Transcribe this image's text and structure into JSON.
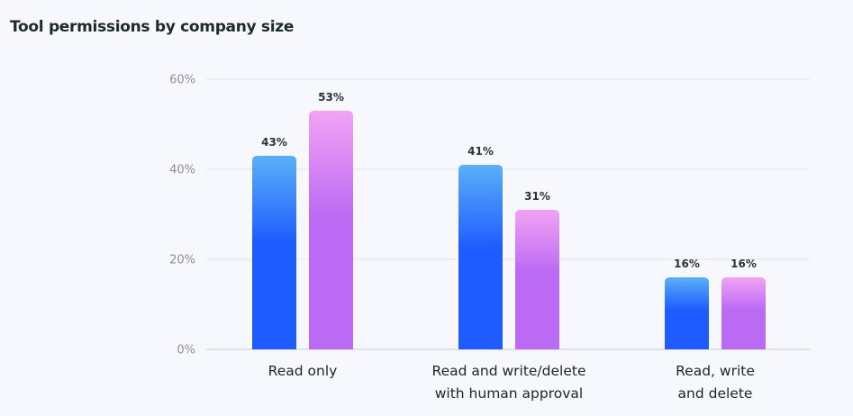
{
  "chart_data": {
    "type": "bar",
    "title": "Tool permissions by company size",
    "categories": [
      [
        "Read only"
      ],
      [
        "Read and write/delete",
        "with human approval"
      ],
      [
        "Read, write",
        "and delete"
      ]
    ],
    "series": [
      {
        "values": [
          43,
          41,
          16
        ],
        "color_top": "#5ab0f7",
        "color_bottom": "#1f5cff"
      },
      {
        "values": [
          53,
          31,
          16
        ],
        "color_top": "#f2a2f3",
        "color_bottom": "#bb6af4"
      }
    ],
    "value_labels": [
      [
        "43%",
        "41%",
        "16%"
      ],
      [
        "53%",
        "31%",
        "16%"
      ]
    ],
    "y_ticks": [
      0,
      20,
      40,
      60
    ],
    "y_tick_labels": [
      "0%",
      "20%",
      "40%",
      "60%"
    ],
    "ylim": [
      0,
      60
    ],
    "grid": true,
    "legend": "none"
  }
}
